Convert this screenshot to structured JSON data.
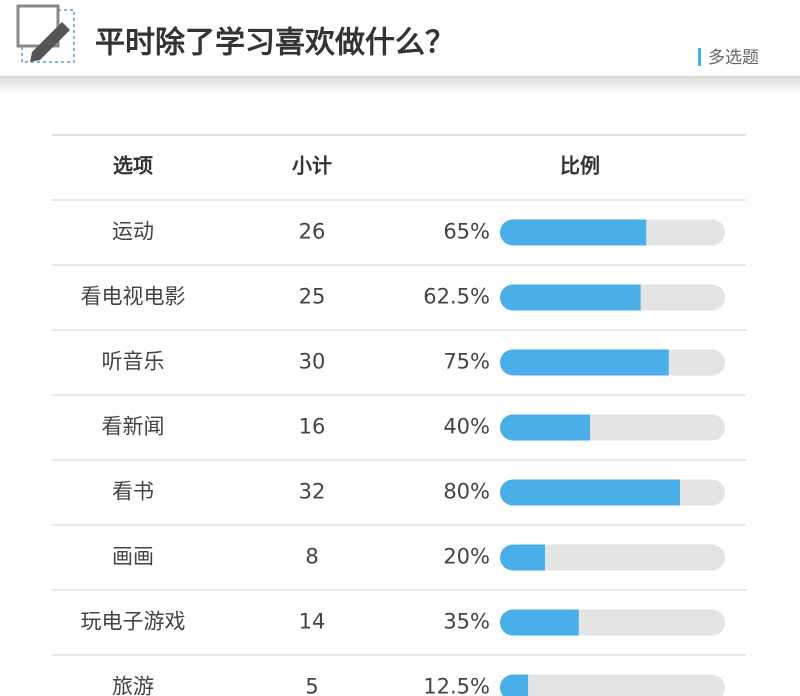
{
  "header": {
    "title": "平时除了学习喜欢做什么？",
    "tag": "多选题"
  },
  "table": {
    "columns": [
      "选项",
      "小计",
      "比例"
    ],
    "ratio_max": 100,
    "rows": [
      {
        "option": "运动",
        "count": 26,
        "ratio": 65,
        "ratio_label": "65%"
      },
      {
        "option": "看电视电影",
        "count": 25,
        "ratio": 62.5,
        "ratio_label": "62.5%"
      },
      {
        "option": "听音乐",
        "count": 30,
        "ratio": 75,
        "ratio_label": "75%"
      },
      {
        "option": "看新闻",
        "count": 16,
        "ratio": 40,
        "ratio_label": "40%"
      },
      {
        "option": "看书",
        "count": 32,
        "ratio": 80,
        "ratio_label": "80%"
      },
      {
        "option": "画画",
        "count": 8,
        "ratio": 20,
        "ratio_label": "20%"
      },
      {
        "option": "玩电子游戏",
        "count": 14,
        "ratio": 35,
        "ratio_label": "35%"
      },
      {
        "option": "旅游",
        "count": 5,
        "ratio": 12.5,
        "ratio_label": "12.5%"
      }
    ]
  }
}
